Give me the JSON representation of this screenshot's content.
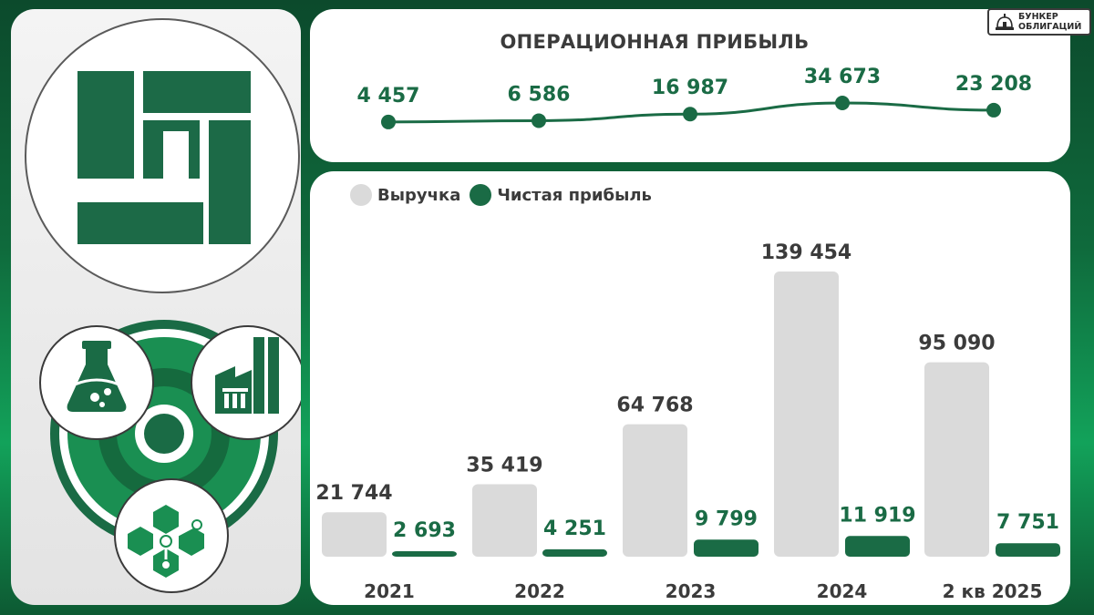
{
  "brand": {
    "line1": "БУНКЕР",
    "line2": "ОБЛИГАЦИЙ"
  },
  "colors": {
    "accent": "#1a6b45",
    "revenue_bar": "#dadada",
    "text_dark": "#3b3b3b",
    "background_green": "#0f6a3c"
  },
  "icons": [
    "company-logo-icon",
    "flask-icon",
    "factory-icon",
    "molecule-icon",
    "ring-icon"
  ],
  "chart_data": [
    {
      "type": "line",
      "title": "ОПЕРАЦИОННАЯ ПРИБЫЛЬ",
      "categories": [
        "2021",
        "2022",
        "2023",
        "2024",
        "2 кв 2025"
      ],
      "values": [
        4457,
        6586,
        16987,
        34673,
        23208
      ],
      "value_labels": [
        "4 457",
        "6 586",
        "16 987",
        "34 673",
        "23 208"
      ],
      "color": "#1a6b45",
      "grid": false
    },
    {
      "type": "bar",
      "categories": [
        "2021",
        "2022",
        "2023",
        "2024",
        "2 кв 2025"
      ],
      "legend_position": "top-left",
      "grid": false,
      "series": [
        {
          "name": "Выручка",
          "color": "#dadada",
          "values": [
            21744,
            35419,
            64768,
            139454,
            95090
          ],
          "value_labels": [
            "21 744",
            "35 419",
            "64 768",
            "139 454",
            "95 090"
          ]
        },
        {
          "name": "Чистая прибыль",
          "color": "#1a6b45",
          "values": [
            2693,
            4251,
            9799,
            11919,
            7751
          ],
          "value_labels": [
            "2 693",
            "4 251",
            "9 799",
            "11 919",
            "7 751"
          ]
        }
      ]
    }
  ]
}
